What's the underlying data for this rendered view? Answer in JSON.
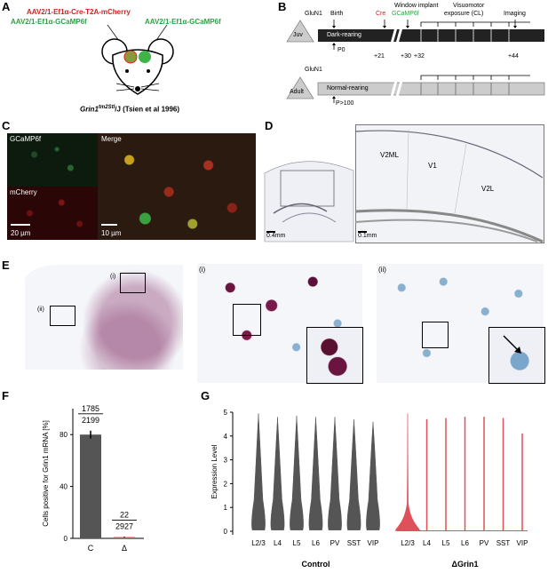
{
  "panels": {
    "A": "A",
    "B": "B",
    "C": "C",
    "D": "D",
    "E": "E",
    "F": "F",
    "G": "G"
  },
  "panelA": {
    "virus1": "AAV2/1-Ef1α-Cre-T2A-mCherry",
    "virus2": "AAV2/1-Ef1α-GCaMP6f",
    "virus3": "AAV2/1-Ef1α-GCaMP6f",
    "strain": "Grin1",
    "strain_sup": "tm2Stl",
    "strain_suffix": "/J (Tsien et al 1996)"
  },
  "panelB": {
    "juv_label": "Juv",
    "adult_label": "Adult",
    "glun1_1": "GluN1",
    "glun1_2": "GluN1",
    "birth": "Birth",
    "cre": "Cre",
    "window_implant": "Window implant",
    "gcamp": "GCaMP6f",
    "visuomotor": "Visuomotor",
    "exposure": "exposure (CL)",
    "imaging": "Imaging",
    "dark_rearing": "Dark-rearing",
    "normal_rearing": "Normal-rearing",
    "p0": "P0",
    "p100": "P>100",
    "d21": "+21",
    "d30": "+30",
    "d32": "+32",
    "d44": "+44"
  },
  "panelC": {
    "gcamp_label": "GCaMP6f",
    "mcherry_label": "mCherry",
    "merge_label": "Merge",
    "scale1": "20 µm",
    "scale2": "10 µm"
  },
  "panelD": {
    "v2ml": "V2ML",
    "v1": "V1",
    "v2l": "V2L",
    "scale1": "0.4mm",
    "scale2": "0.1mm"
  },
  "panelE": {
    "label_i": "(i)",
    "label_ii": "(ii)",
    "inset_i": "(i)",
    "inset_ii": "(ii)"
  },
  "colors": {
    "control": "#555555",
    "dgrin1": "#e0505a",
    "cherry": "#d62020",
    "gcamp": "#2ea043"
  },
  "chart_data": [
    {
      "type": "bar",
      "ylabel": "Cells positive for Grin1 mRNA [%]",
      "categories": [
        "C",
        "Δ"
      ],
      "values": [
        80,
        1
      ],
      "errors": [
        3,
        0.3
      ],
      "ylim": [
        0,
        100
      ],
      "yticks": [
        0,
        40,
        80
      ],
      "annotations": [
        {
          "numerator": "1785",
          "denominator": "2199"
        },
        {
          "numerator": "22",
          "denominator": "2927"
        }
      ]
    },
    {
      "type": "violin",
      "ylabel": "Expression Level",
      "ylim": [
        0,
        5
      ],
      "yticks": [
        0,
        1,
        2,
        3,
        4,
        5
      ],
      "groups": [
        {
          "name": "Control",
          "categories": [
            "L2/3",
            "L4",
            "L5",
            "L6",
            "PV",
            "SST",
            "VIP"
          ],
          "max": [
            4.95,
            4.8,
            4.85,
            4.8,
            4.8,
            4.7,
            4.6
          ]
        },
        {
          "name": "ΔGrin1",
          "categories": [
            "L2/3",
            "L4",
            "L5",
            "L6",
            "PV",
            "SST",
            "VIP"
          ],
          "max": [
            4.95,
            4.7,
            4.75,
            4.8,
            4.8,
            4.75,
            4.1
          ]
        }
      ]
    }
  ]
}
